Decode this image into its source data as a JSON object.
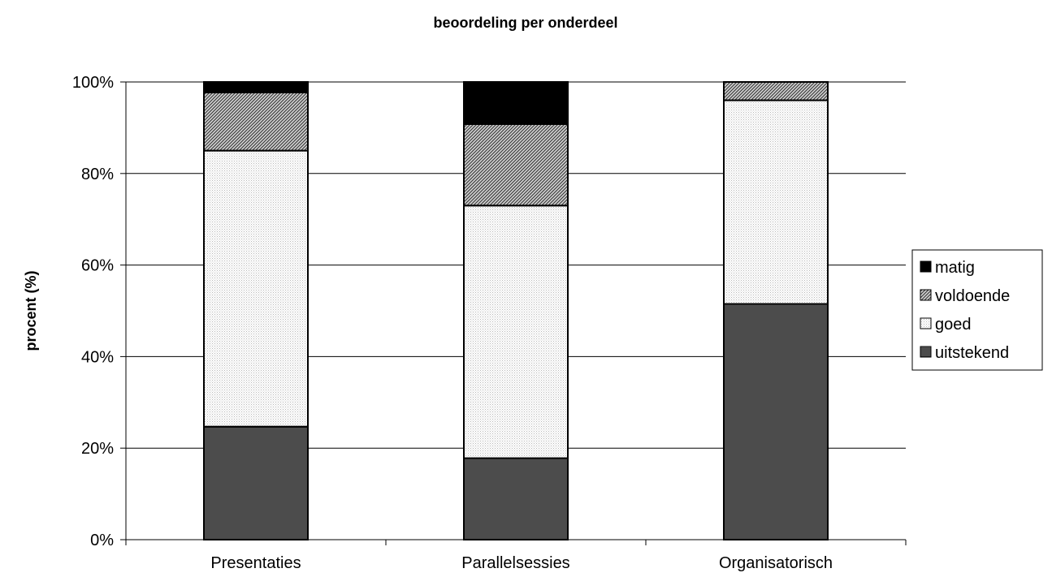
{
  "chart_data": {
    "type": "bar",
    "stacked": true,
    "title": "beoordeling per onderdeel",
    "xlabel": "",
    "ylabel": "procent (%)",
    "ylim": [
      0,
      100
    ],
    "y_tick_labels": [
      "0%",
      "20%",
      "40%",
      "60%",
      "80%",
      "100%"
    ],
    "grid": true,
    "legend_position": "right",
    "categories": [
      "Presentaties",
      "Parallelsessies",
      "Organisatorisch"
    ],
    "series": [
      {
        "name": "uitstekend",
        "values": [
          24.7,
          17.8,
          51.5
        ],
        "pattern": "horizontal-lines",
        "color": "#808080"
      },
      {
        "name": "goed",
        "values": [
          60.3,
          55.2,
          44.5
        ],
        "pattern": "fine-dots",
        "color": "#e0e0e0"
      },
      {
        "name": "voldoende",
        "values": [
          12.7,
          17.8,
          4.0
        ],
        "pattern": "diagonal-hatch",
        "color": "#a0a0a0"
      },
      {
        "name": "matig",
        "values": [
          2.3,
          9.2,
          0
        ],
        "pattern": "solid",
        "color": "#000000"
      }
    ],
    "legend_order": [
      "matig",
      "voldoende",
      "goed",
      "uitstekend"
    ]
  }
}
